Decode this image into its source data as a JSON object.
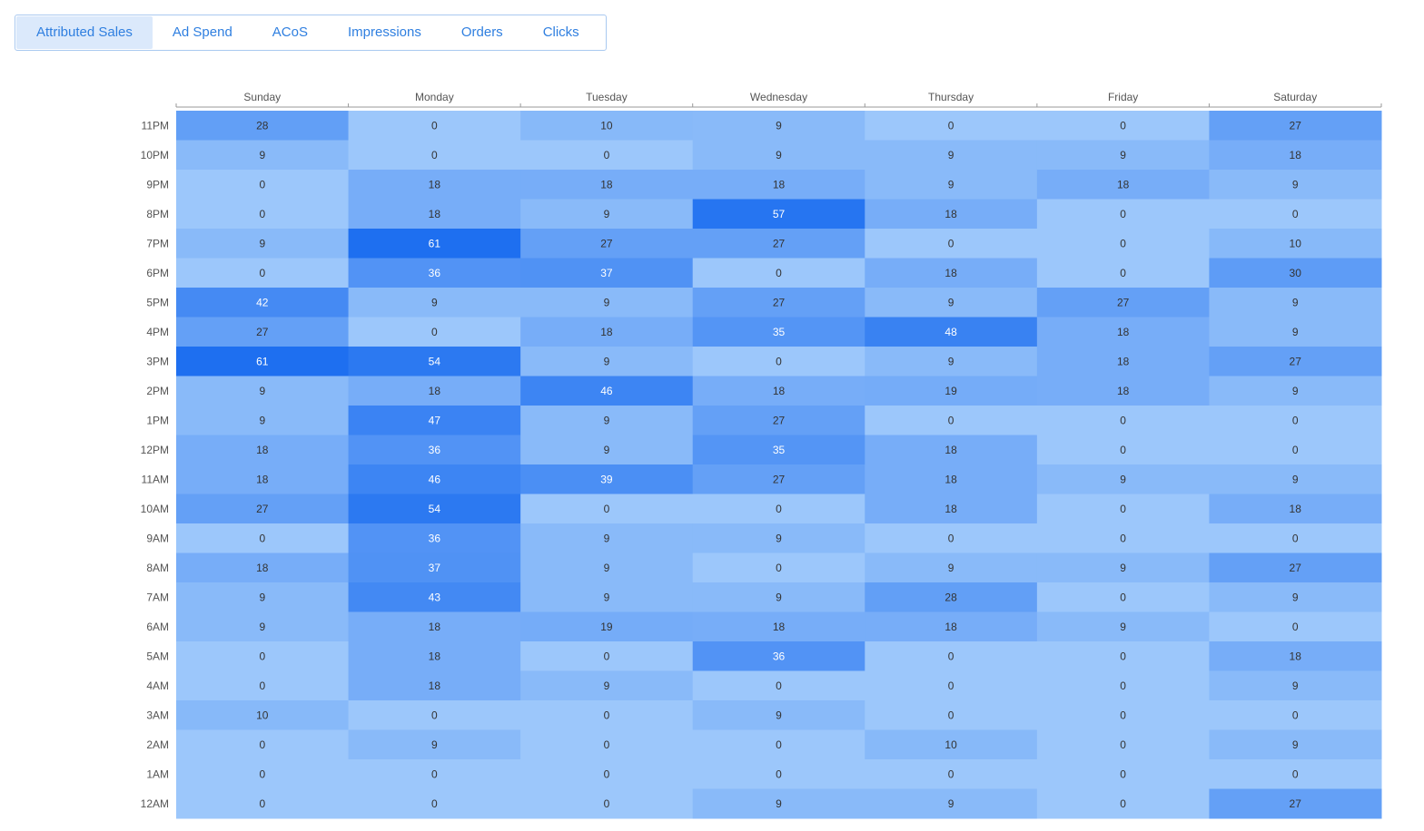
{
  "tabs": {
    "items": [
      "Attributed Sales",
      "Ad Spend",
      "ACoS",
      "Impressions",
      "Orders",
      "Clicks"
    ],
    "selected": 0
  },
  "chart_data": {
    "type": "heatmap",
    "x_categories": [
      "Sunday",
      "Monday",
      "Tuesday",
      "Wednesday",
      "Thursday",
      "Friday",
      "Saturday"
    ],
    "y_categories": [
      "11PM",
      "10PM",
      "9PM",
      "8PM",
      "7PM",
      "6PM",
      "5PM",
      "4PM",
      "3PM",
      "2PM",
      "1PM",
      "12PM",
      "11AM",
      "10AM",
      "9AM",
      "8AM",
      "7AM",
      "6AM",
      "5AM",
      "4AM",
      "3AM",
      "2AM",
      "1AM",
      "12AM"
    ],
    "values": [
      [
        28,
        0,
        10,
        9,
        0,
        0,
        27
      ],
      [
        9,
        0,
        0,
        9,
        9,
        9,
        18
      ],
      [
        0,
        18,
        18,
        18,
        9,
        18,
        9
      ],
      [
        0,
        18,
        9,
        57,
        18,
        0,
        0
      ],
      [
        9,
        61,
        27,
        27,
        0,
        0,
        10
      ],
      [
        0,
        36,
        37,
        0,
        18,
        0,
        30
      ],
      [
        42,
        9,
        9,
        27,
        9,
        27,
        9
      ],
      [
        27,
        0,
        18,
        35,
        48,
        18,
        9
      ],
      [
        61,
        54,
        9,
        0,
        9,
        18,
        27
      ],
      [
        9,
        18,
        46,
        18,
        19,
        18,
        9
      ],
      [
        9,
        47,
        9,
        27,
        0,
        0,
        0
      ],
      [
        18,
        36,
        9,
        35,
        18,
        0,
        0
      ],
      [
        18,
        46,
        39,
        27,
        18,
        9,
        9
      ],
      [
        27,
        54,
        0,
        0,
        18,
        0,
        18
      ],
      [
        0,
        36,
        9,
        9,
        0,
        0,
        0
      ],
      [
        18,
        37,
        9,
        0,
        9,
        9,
        27
      ],
      [
        9,
        43,
        9,
        9,
        28,
        0,
        9
      ],
      [
        9,
        18,
        19,
        18,
        18,
        9,
        0
      ],
      [
        0,
        18,
        0,
        36,
        0,
        0,
        18
      ],
      [
        0,
        18,
        9,
        0,
        0,
        0,
        9
      ],
      [
        10,
        0,
        0,
        9,
        0,
        0,
        0
      ],
      [
        0,
        9,
        0,
        0,
        10,
        0,
        9
      ],
      [
        0,
        0,
        0,
        0,
        0,
        0,
        0
      ],
      [
        0,
        0,
        0,
        9,
        9,
        0,
        27
      ]
    ],
    "color_range": [
      "#9cc7fb",
      "#1e6ff0"
    ]
  }
}
